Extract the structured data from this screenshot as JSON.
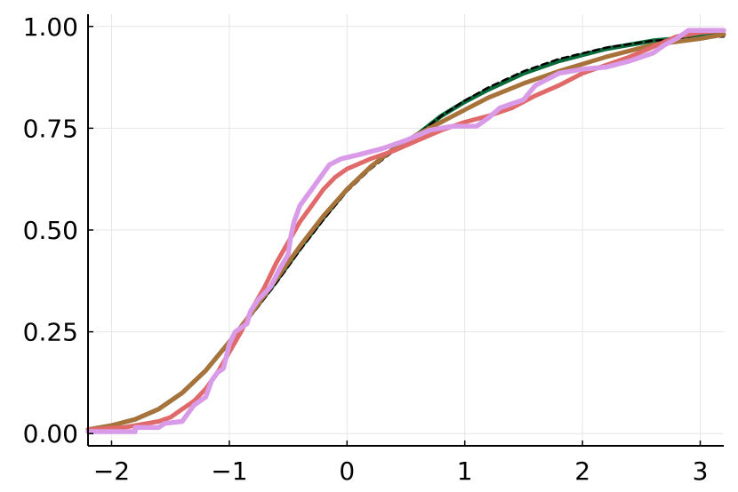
{
  "chart_data": {
    "type": "line",
    "title": "",
    "xlabel": "",
    "ylabel": "",
    "xlim": [
      -2.2,
      3.2
    ],
    "ylim": [
      -0.03,
      1.03
    ],
    "grid": true,
    "legend": "none",
    "x_ticks": [
      {
        "value": -2,
        "label": "−2"
      },
      {
        "value": -1,
        "label": "−1"
      },
      {
        "value": 0,
        "label": "0"
      },
      {
        "value": 1,
        "label": "1"
      },
      {
        "value": 2,
        "label": "2"
      },
      {
        "value": 3,
        "label": "3"
      }
    ],
    "y_ticks": [
      {
        "value": 0,
        "label": "0.00"
      },
      {
        "value": 0.25,
        "label": "0.25"
      },
      {
        "value": 0.5,
        "label": "0.50"
      },
      {
        "value": 0.75,
        "label": "0.75"
      },
      {
        "value": 1,
        "label": "1.00"
      }
    ],
    "series": [
      {
        "color": "#0a6b3a",
        "width": 5,
        "dash": "",
        "points": [
          [
            -2.2,
            0.01
          ],
          [
            -2.0,
            0.02
          ],
          [
            -1.8,
            0.035
          ],
          [
            -1.6,
            0.06
          ],
          [
            -1.4,
            0.1
          ],
          [
            -1.2,
            0.155
          ],
          [
            -1.0,
            0.225
          ],
          [
            -0.8,
            0.3
          ],
          [
            -0.6,
            0.375
          ],
          [
            -0.4,
            0.455
          ],
          [
            -0.2,
            0.53
          ],
          [
            0.0,
            0.6
          ],
          [
            0.2,
            0.655
          ],
          [
            0.4,
            0.7
          ],
          [
            0.6,
            0.735
          ],
          [
            0.8,
            0.78
          ],
          [
            1.0,
            0.815
          ],
          [
            1.2,
            0.845
          ],
          [
            1.5,
            0.885
          ],
          [
            1.8,
            0.915
          ],
          [
            2.2,
            0.945
          ],
          [
            2.6,
            0.965
          ],
          [
            3.0,
            0.975
          ],
          [
            3.2,
            0.98
          ]
        ]
      },
      {
        "color": "#000000",
        "width": 2.5,
        "dash": "7,5",
        "points": [
          [
            -2.2,
            0.01
          ],
          [
            -2.0,
            0.02
          ],
          [
            -1.8,
            0.035
          ],
          [
            -1.6,
            0.06
          ],
          [
            -1.4,
            0.1
          ],
          [
            -1.2,
            0.155
          ],
          [
            -1.0,
            0.225
          ],
          [
            -0.8,
            0.295
          ],
          [
            -0.6,
            0.37
          ],
          [
            -0.4,
            0.45
          ],
          [
            -0.2,
            0.525
          ],
          [
            0.0,
            0.595
          ],
          [
            0.2,
            0.65
          ],
          [
            0.4,
            0.695
          ],
          [
            0.6,
            0.735
          ],
          [
            0.8,
            0.78
          ],
          [
            1.0,
            0.818
          ],
          [
            1.2,
            0.85
          ],
          [
            1.5,
            0.89
          ],
          [
            1.8,
            0.92
          ],
          [
            2.2,
            0.948
          ],
          [
            2.6,
            0.965
          ],
          [
            3.0,
            0.972
          ],
          [
            3.2,
            0.975
          ]
        ]
      },
      {
        "color": "#a8733a",
        "width": 5,
        "dash": "",
        "points": [
          [
            -2.2,
            0.01
          ],
          [
            -2.0,
            0.02
          ],
          [
            -1.8,
            0.035
          ],
          [
            -1.6,
            0.06
          ],
          [
            -1.4,
            0.1
          ],
          [
            -1.2,
            0.155
          ],
          [
            -1.0,
            0.225
          ],
          [
            -0.8,
            0.3
          ],
          [
            -0.6,
            0.38
          ],
          [
            -0.4,
            0.46
          ],
          [
            -0.2,
            0.535
          ],
          [
            0.0,
            0.6
          ],
          [
            0.2,
            0.655
          ],
          [
            0.4,
            0.7
          ],
          [
            0.6,
            0.735
          ],
          [
            0.8,
            0.765
          ],
          [
            1.0,
            0.795
          ],
          [
            1.2,
            0.825
          ],
          [
            1.5,
            0.86
          ],
          [
            1.8,
            0.89
          ],
          [
            2.2,
            0.925
          ],
          [
            2.6,
            0.955
          ],
          [
            3.0,
            0.97
          ],
          [
            3.2,
            0.98
          ]
        ]
      },
      {
        "color": "#e06a6a",
        "width": 5,
        "dash": "",
        "points": [
          [
            -2.2,
            0.01
          ],
          [
            -1.9,
            0.015
          ],
          [
            -1.8,
            0.02
          ],
          [
            -1.6,
            0.03
          ],
          [
            -1.5,
            0.04
          ],
          [
            -1.4,
            0.06
          ],
          [
            -1.3,
            0.08
          ],
          [
            -1.2,
            0.11
          ],
          [
            -1.1,
            0.15
          ],
          [
            -1.0,
            0.2
          ],
          [
            -0.9,
            0.25
          ],
          [
            -0.8,
            0.31
          ],
          [
            -0.7,
            0.36
          ],
          [
            -0.6,
            0.42
          ],
          [
            -0.5,
            0.47
          ],
          [
            -0.4,
            0.52
          ],
          [
            -0.3,
            0.56
          ],
          [
            -0.2,
            0.6
          ],
          [
            -0.1,
            0.63
          ],
          [
            0.0,
            0.65
          ],
          [
            0.2,
            0.675
          ],
          [
            0.4,
            0.695
          ],
          [
            0.6,
            0.72
          ],
          [
            0.8,
            0.745
          ],
          [
            1.0,
            0.765
          ],
          [
            1.2,
            0.78
          ],
          [
            1.4,
            0.8
          ],
          [
            1.6,
            0.83
          ],
          [
            1.8,
            0.855
          ],
          [
            2.0,
            0.885
          ],
          [
            2.2,
            0.905
          ],
          [
            2.4,
            0.925
          ],
          [
            2.6,
            0.95
          ],
          [
            2.8,
            0.975
          ],
          [
            3.0,
            0.985
          ],
          [
            3.2,
            0.99
          ]
        ]
      },
      {
        "color": "#d99be8",
        "width": 5.5,
        "dash": "",
        "points": [
          [
            -2.2,
            0.005
          ],
          [
            -1.8,
            0.005
          ],
          [
            -1.8,
            0.015
          ],
          [
            -1.6,
            0.015
          ],
          [
            -1.55,
            0.025
          ],
          [
            -1.4,
            0.03
          ],
          [
            -1.35,
            0.05
          ],
          [
            -1.3,
            0.07
          ],
          [
            -1.2,
            0.09
          ],
          [
            -1.15,
            0.13
          ],
          [
            -1.1,
            0.15
          ],
          [
            -1.05,
            0.16
          ],
          [
            -1.0,
            0.22
          ],
          [
            -0.95,
            0.25
          ],
          [
            -0.85,
            0.27
          ],
          [
            -0.82,
            0.3
          ],
          [
            -0.75,
            0.33
          ],
          [
            -0.65,
            0.36
          ],
          [
            -0.58,
            0.4
          ],
          [
            -0.5,
            0.44
          ],
          [
            -0.48,
            0.48
          ],
          [
            -0.45,
            0.52
          ],
          [
            -0.4,
            0.56
          ],
          [
            -0.35,
            0.58
          ],
          [
            -0.3,
            0.6
          ],
          [
            -0.25,
            0.62
          ],
          [
            -0.2,
            0.64
          ],
          [
            -0.15,
            0.66
          ],
          [
            -0.05,
            0.675
          ],
          [
            0.1,
            0.685
          ],
          [
            0.3,
            0.7
          ],
          [
            0.5,
            0.72
          ],
          [
            0.7,
            0.745
          ],
          [
            0.9,
            0.755
          ],
          [
            1.1,
            0.755
          ],
          [
            1.2,
            0.775
          ],
          [
            1.3,
            0.8
          ],
          [
            1.4,
            0.81
          ],
          [
            1.5,
            0.82
          ],
          [
            1.6,
            0.855
          ],
          [
            1.8,
            0.885
          ],
          [
            2.0,
            0.895
          ],
          [
            2.2,
            0.9
          ],
          [
            2.4,
            0.915
          ],
          [
            2.6,
            0.935
          ],
          [
            2.7,
            0.955
          ],
          [
            2.8,
            0.97
          ],
          [
            2.9,
            0.99
          ],
          [
            3.2,
            0.99
          ]
        ]
      }
    ]
  }
}
